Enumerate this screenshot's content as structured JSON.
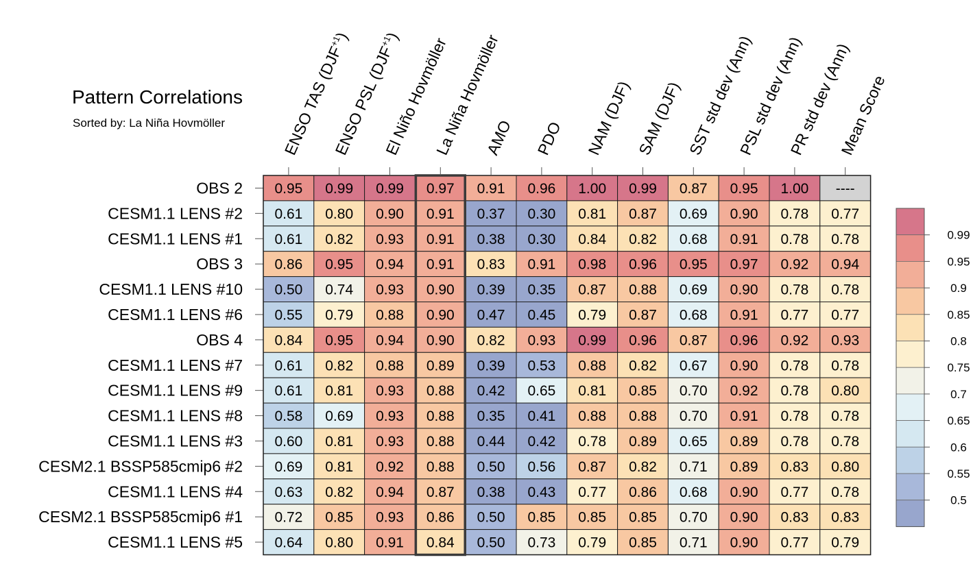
{
  "title": "Pattern Correlations",
  "subtitle": "Sorted by: La Niña Hovmöller",
  "chart_data": {
    "type": "heatmap",
    "title": "Pattern Correlations",
    "subtitle": "Sorted by: La Niña Hovmöller",
    "highlighted_column": "La Niña Hovmöller",
    "columns": [
      {
        "base": "ENSO TAS (DJF",
        "sup": "+1",
        "close": ")"
      },
      {
        "base": "ENSO PSL (DJF",
        "sup": "+1",
        "close": ")"
      },
      {
        "base": "El Niño Hovmöller"
      },
      {
        "base": "La Niña Hovmöller"
      },
      {
        "base": "AMO"
      },
      {
        "base": "PDO"
      },
      {
        "base": "NAM (DJF)"
      },
      {
        "base": "SAM (DJF)"
      },
      {
        "base": "SST std dev (Ann)"
      },
      {
        "base": "PSL std dev (Ann)"
      },
      {
        "base": "PR std dev (Ann)"
      },
      {
        "base": "Mean Score"
      }
    ],
    "rows": [
      {
        "name": "OBS 2",
        "values": [
          "0.95",
          "0.99",
          "0.99",
          "0.97",
          "0.91",
          "0.96",
          "1.00",
          "0.99",
          "0.87",
          "0.95",
          "1.00",
          "----"
        ]
      },
      {
        "name": "CESM1.1 LENS #2",
        "values": [
          "0.61",
          "0.80",
          "0.90",
          "0.91",
          "0.37",
          "0.30",
          "0.81",
          "0.87",
          "0.69",
          "0.90",
          "0.78",
          "0.77"
        ]
      },
      {
        "name": "CESM1.1 LENS #1",
        "values": [
          "0.61",
          "0.82",
          "0.93",
          "0.91",
          "0.38",
          "0.30",
          "0.84",
          "0.82",
          "0.68",
          "0.91",
          "0.78",
          "0.78"
        ]
      },
      {
        "name": "OBS 3",
        "values": [
          "0.86",
          "0.95",
          "0.94",
          "0.91",
          "0.83",
          "0.91",
          "0.98",
          "0.96",
          "0.95",
          "0.97",
          "0.92",
          "0.94"
        ]
      },
      {
        "name": "CESM1.1 LENS #10",
        "values": [
          "0.50",
          "0.74",
          "0.93",
          "0.90",
          "0.39",
          "0.35",
          "0.87",
          "0.88",
          "0.69",
          "0.90",
          "0.78",
          "0.78"
        ]
      },
      {
        "name": "CESM1.1 LENS #6",
        "values": [
          "0.55",
          "0.79",
          "0.88",
          "0.90",
          "0.47",
          "0.45",
          "0.79",
          "0.87",
          "0.68",
          "0.91",
          "0.77",
          "0.77"
        ]
      },
      {
        "name": "OBS 4",
        "values": [
          "0.84",
          "0.95",
          "0.94",
          "0.90",
          "0.82",
          "0.93",
          "0.99",
          "0.96",
          "0.87",
          "0.96",
          "0.92",
          "0.93"
        ]
      },
      {
        "name": "CESM1.1 LENS #7",
        "values": [
          "0.61",
          "0.82",
          "0.88",
          "0.89",
          "0.39",
          "0.53",
          "0.88",
          "0.82",
          "0.67",
          "0.90",
          "0.78",
          "0.78"
        ]
      },
      {
        "name": "CESM1.1 LENS #9",
        "values": [
          "0.61",
          "0.81",
          "0.93",
          "0.88",
          "0.42",
          "0.65",
          "0.81",
          "0.85",
          "0.70",
          "0.92",
          "0.78",
          "0.80"
        ]
      },
      {
        "name": "CESM1.1 LENS #8",
        "values": [
          "0.58",
          "0.69",
          "0.93",
          "0.88",
          "0.35",
          "0.41",
          "0.88",
          "0.88",
          "0.70",
          "0.91",
          "0.78",
          "0.78"
        ]
      },
      {
        "name": "CESM1.1 LENS #3",
        "values": [
          "0.60",
          "0.81",
          "0.93",
          "0.88",
          "0.44",
          "0.42",
          "0.78",
          "0.89",
          "0.65",
          "0.89",
          "0.78",
          "0.78"
        ]
      },
      {
        "name": "CESM2.1 BSSP585cmip6 #2",
        "values": [
          "0.69",
          "0.81",
          "0.92",
          "0.88",
          "0.50",
          "0.56",
          "0.87",
          "0.82",
          "0.71",
          "0.89",
          "0.83",
          "0.80"
        ]
      },
      {
        "name": "CESM1.1 LENS #4",
        "values": [
          "0.63",
          "0.82",
          "0.94",
          "0.87",
          "0.38",
          "0.43",
          "0.77",
          "0.86",
          "0.68",
          "0.90",
          "0.77",
          "0.78"
        ]
      },
      {
        "name": "CESM2.1 BSSP585cmip6 #1",
        "values": [
          "0.72",
          "0.85",
          "0.93",
          "0.86",
          "0.50",
          "0.85",
          "0.85",
          "0.85",
          "0.70",
          "0.90",
          "0.83",
          "0.83"
        ]
      },
      {
        "name": "CESM1.1 LENS #5",
        "values": [
          "0.64",
          "0.80",
          "0.91",
          "0.84",
          "0.50",
          "0.73",
          "0.79",
          "0.85",
          "0.71",
          "0.90",
          "0.77",
          "0.79"
        ]
      }
    ],
    "colorbar": {
      "thresholds": [
        0.5,
        0.55,
        0.6,
        0.65,
        0.7,
        0.75,
        0.8,
        0.85,
        0.9,
        0.95,
        0.99
      ],
      "labels": [
        "0.99",
        "0.95",
        "0.9",
        "0.85",
        "0.8",
        "0.75",
        "0.7",
        "0.65",
        "0.6",
        "0.55",
        "0.5"
      ],
      "colors": [
        "#98a6cd",
        "#a8b8da",
        "#bdd2e7",
        "#d5e8f1",
        "#e3f1f5",
        "#f2f2e8",
        "#fdf0cf",
        "#fce1b5",
        "#f8c8a2",
        "#f2ae98",
        "#e88f8a",
        "#d6768a"
      ],
      "missing_color": "#d3d3d3"
    }
  }
}
